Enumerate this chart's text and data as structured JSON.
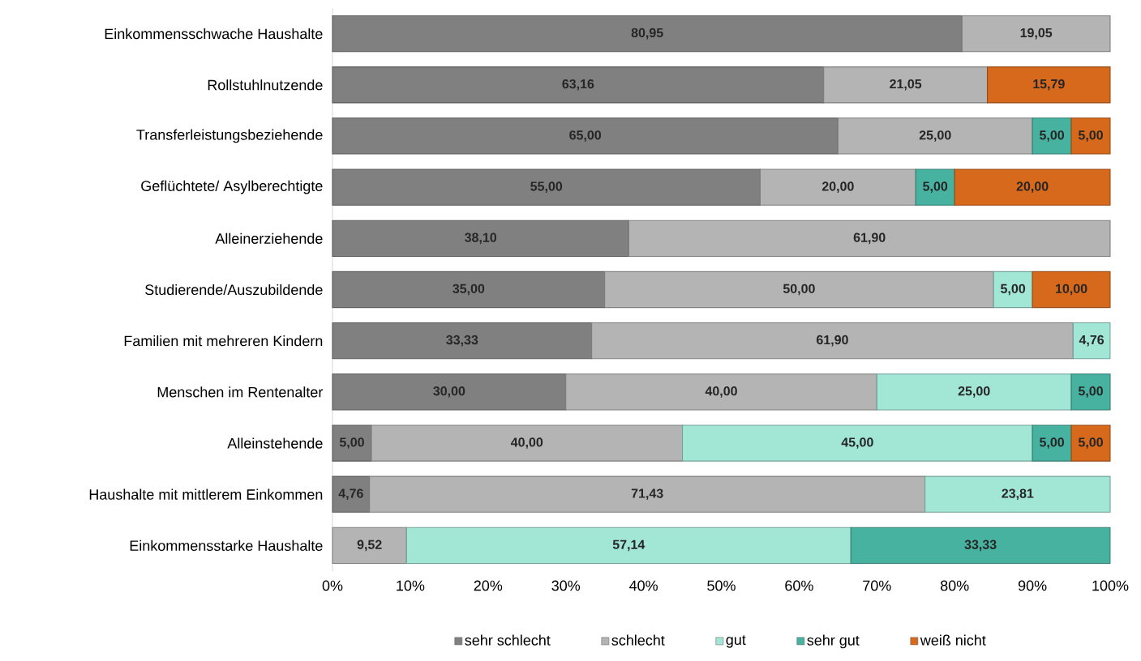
{
  "chart_data": {
    "type": "bar",
    "orientation": "horizontal",
    "stacked": true,
    "categories": [
      "Einkommensschwache Haushalte",
      "Rollstuhlnutzende",
      "Transferleistungsbeziehende",
      "Geflüchtete/ Asylberechtigte",
      "Alleinerziehende",
      "Studierende/Auszubildende",
      "Familien mit mehreren Kindern",
      "Menschen im Rentenalter",
      "Alleinstehende",
      "Haushalte mit mittlerem Einkommen",
      "Einkommensstarke Haushalte"
    ],
    "series": [
      {
        "name": "sehr schlecht",
        "color": "#808080",
        "values": [
          80.95,
          63.16,
          65.0,
          55.0,
          38.1,
          35.0,
          33.33,
          30.0,
          5.0,
          4.76,
          null
        ],
        "value_labels": [
          "80,95",
          "63,16",
          "65,00",
          "55,00",
          "38,10",
          "35,00",
          "33,33",
          "30,00",
          "5,00",
          "4,76",
          null
        ]
      },
      {
        "name": "schlecht",
        "color": "#b4b4b4",
        "values": [
          19.05,
          21.05,
          25.0,
          20.0,
          61.9,
          50.0,
          61.9,
          40.0,
          40.0,
          71.43,
          9.52
        ],
        "value_labels": [
          "19,05",
          "21,05",
          "25,00",
          "20,00",
          "61,90",
          "50,00",
          "61,90",
          "40,00",
          "40,00",
          "71,43",
          "9,52"
        ]
      },
      {
        "name": "gut",
        "color": "#a2e6d6",
        "values": [
          null,
          null,
          null,
          null,
          null,
          5.0,
          4.76,
          25.0,
          45.0,
          23.81,
          57.14
        ],
        "value_labels": [
          null,
          null,
          null,
          null,
          null,
          "5,00",
          "4,76",
          "25,00",
          "45,00",
          "23,81",
          "57,14"
        ]
      },
      {
        "name": "sehr gut",
        "color": "#48b2a0",
        "values": [
          null,
          null,
          5.0,
          5.0,
          null,
          null,
          null,
          5.0,
          5.0,
          null,
          33.33
        ],
        "value_labels": [
          null,
          null,
          "5,00",
          "5,00",
          null,
          null,
          null,
          "5,00",
          "5,00",
          null,
          "33,33"
        ]
      },
      {
        "name": "weiß nicht",
        "color": "#d6691c",
        "values": [
          null,
          15.79,
          5.0,
          20.0,
          null,
          10.0,
          null,
          null,
          5.0,
          null,
          null
        ],
        "value_labels": [
          null,
          "15,79",
          "5,00",
          "20,00",
          null,
          "10,00",
          null,
          null,
          "5,00",
          null,
          null
        ]
      }
    ],
    "xlim": [
      0,
      100
    ],
    "xticks": [
      {
        "value": 0,
        "label": "0%"
      },
      {
        "value": 10,
        "label": "10%"
      },
      {
        "value": 20,
        "label": "20%"
      },
      {
        "value": 30,
        "label": "30%"
      },
      {
        "value": 40,
        "label": "40%"
      },
      {
        "value": 50,
        "label": "50%"
      },
      {
        "value": 60,
        "label": "60%"
      },
      {
        "value": 70,
        "label": "70%"
      },
      {
        "value": 80,
        "label": "80%"
      },
      {
        "value": 90,
        "label": "90%"
      },
      {
        "value": 100,
        "label": "100%"
      }
    ],
    "grid": false,
    "legend": "bottom"
  }
}
